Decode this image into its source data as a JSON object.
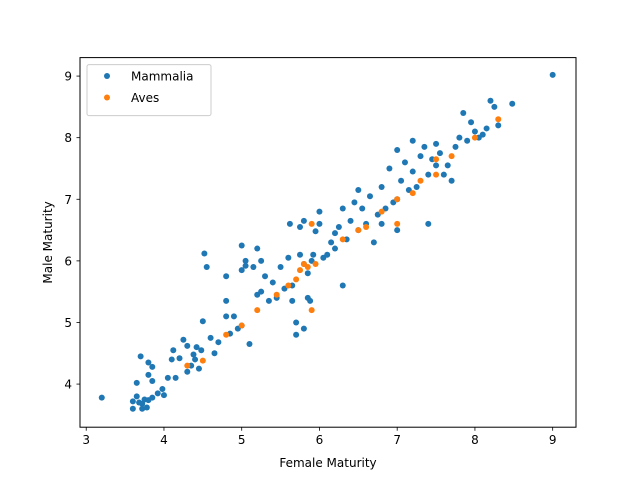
{
  "chart_data": {
    "type": "scatter",
    "xlabel": "Female Maturity",
    "ylabel": "Male Maturity",
    "xlim": [
      2.92,
      9.3
    ],
    "ylim": [
      3.3,
      9.3
    ],
    "xticks": [
      3,
      4,
      5,
      6,
      7,
      8,
      9
    ],
    "yticks": [
      4,
      5,
      6,
      7,
      8,
      9
    ],
    "grid": false,
    "legend_position": "upper-left",
    "series": [
      {
        "name": "Mammalia",
        "color": "#1f77b4",
        "points": [
          [
            3.2,
            3.78
          ],
          [
            3.6,
            3.6
          ],
          [
            3.6,
            3.72
          ],
          [
            3.65,
            3.8
          ],
          [
            3.65,
            4.02
          ],
          [
            3.68,
            3.7
          ],
          [
            3.7,
            4.45
          ],
          [
            3.72,
            3.6
          ],
          [
            3.72,
            3.68
          ],
          [
            3.75,
            3.75
          ],
          [
            3.78,
            3.62
          ],
          [
            3.8,
            3.74
          ],
          [
            3.8,
            4.35
          ],
          [
            3.85,
            3.78
          ],
          [
            3.8,
            4.15
          ],
          [
            3.85,
            4.28
          ],
          [
            3.92,
            3.85
          ],
          [
            3.98,
            3.92
          ],
          [
            4.0,
            3.82
          ],
          [
            3.85,
            4.05
          ],
          [
            4.05,
            4.1
          ],
          [
            4.1,
            4.4
          ],
          [
            4.12,
            4.55
          ],
          [
            4.15,
            4.1
          ],
          [
            4.2,
            4.42
          ],
          [
            4.25,
            4.72
          ],
          [
            4.3,
            4.2
          ],
          [
            4.3,
            4.62
          ],
          [
            4.35,
            4.3
          ],
          [
            4.38,
            4.48
          ],
          [
            4.4,
            4.4
          ],
          [
            4.42,
            4.6
          ],
          [
            4.45,
            4.25
          ],
          [
            4.48,
            4.55
          ],
          [
            4.5,
            5.02
          ],
          [
            4.52,
            6.12
          ],
          [
            4.55,
            5.9
          ],
          [
            4.6,
            4.75
          ],
          [
            4.65,
            4.5
          ],
          [
            4.7,
            4.68
          ],
          [
            4.8,
            5.1
          ],
          [
            4.8,
            5.35
          ],
          [
            4.8,
            5.75
          ],
          [
            4.85,
            4.82
          ],
          [
            4.9,
            5.1
          ],
          [
            4.95,
            4.9
          ],
          [
            5.0,
            4.95
          ],
          [
            5.0,
            5.85
          ],
          [
            5.0,
            6.25
          ],
          [
            5.05,
            6.0
          ],
          [
            5.05,
            5.92
          ],
          [
            5.1,
            4.65
          ],
          [
            5.15,
            5.9
          ],
          [
            5.2,
            6.2
          ],
          [
            5.2,
            5.45
          ],
          [
            5.25,
            5.5
          ],
          [
            5.25,
            6.0
          ],
          [
            5.3,
            5.75
          ],
          [
            5.35,
            5.35
          ],
          [
            5.4,
            5.65
          ],
          [
            5.45,
            5.4
          ],
          [
            5.5,
            5.9
          ],
          [
            5.55,
            5.55
          ],
          [
            5.6,
            6.05
          ],
          [
            5.62,
            6.6
          ],
          [
            5.65,
            5.35
          ],
          [
            5.65,
            5.6
          ],
          [
            5.7,
            5.0
          ],
          [
            5.7,
            4.8
          ],
          [
            5.75,
            6.55
          ],
          [
            5.75,
            6.1
          ],
          [
            5.8,
            5.95
          ],
          [
            5.8,
            4.9
          ],
          [
            5.8,
            6.65
          ],
          [
            5.85,
            5.8
          ],
          [
            5.85,
            5.4
          ],
          [
            5.88,
            5.35
          ],
          [
            5.9,
            6.0
          ],
          [
            5.92,
            6.1
          ],
          [
            5.95,
            6.48
          ],
          [
            6.0,
            6.8
          ],
          [
            6.0,
            6.6
          ],
          [
            6.05,
            6.05
          ],
          [
            6.1,
            6.1
          ],
          [
            6.15,
            6.3
          ],
          [
            6.2,
            6.2
          ],
          [
            6.2,
            6.45
          ],
          [
            6.25,
            6.55
          ],
          [
            6.3,
            5.6
          ],
          [
            6.3,
            6.85
          ],
          [
            6.35,
            6.35
          ],
          [
            6.4,
            6.65
          ],
          [
            6.45,
            6.95
          ],
          [
            6.5,
            6.5
          ],
          [
            6.5,
            7.15
          ],
          [
            6.55,
            6.85
          ],
          [
            6.6,
            6.6
          ],
          [
            6.65,
            7.05
          ],
          [
            6.7,
            6.3
          ],
          [
            6.75,
            6.75
          ],
          [
            6.8,
            7.2
          ],
          [
            6.8,
            6.6
          ],
          [
            6.85,
            6.85
          ],
          [
            6.9,
            7.5
          ],
          [
            6.95,
            6.95
          ],
          [
            7.0,
            7.0
          ],
          [
            7.0,
            7.8
          ],
          [
            7.0,
            6.5
          ],
          [
            7.05,
            7.3
          ],
          [
            7.1,
            7.6
          ],
          [
            7.15,
            7.15
          ],
          [
            7.2,
            7.45
          ],
          [
            7.2,
            7.95
          ],
          [
            7.25,
            7.2
          ],
          [
            7.3,
            7.7
          ],
          [
            7.35,
            7.85
          ],
          [
            7.4,
            6.6
          ],
          [
            7.4,
            7.4
          ],
          [
            7.45,
            7.65
          ],
          [
            7.5,
            7.55
          ],
          [
            7.5,
            7.9
          ],
          [
            7.55,
            7.75
          ],
          [
            7.6,
            7.4
          ],
          [
            7.65,
            7.55
          ],
          [
            7.7,
            7.3
          ],
          [
            7.75,
            7.85
          ],
          [
            7.8,
            8.0
          ],
          [
            7.85,
            8.4
          ],
          [
            7.9,
            7.95
          ],
          [
            7.95,
            8.25
          ],
          [
            8.0,
            8.1
          ],
          [
            8.05,
            8.0
          ],
          [
            8.1,
            8.05
          ],
          [
            8.15,
            8.15
          ],
          [
            8.2,
            8.6
          ],
          [
            8.25,
            8.5
          ],
          [
            8.3,
            8.2
          ],
          [
            8.48,
            8.55
          ],
          [
            9.0,
            9.02
          ]
        ]
      },
      {
        "name": "Aves",
        "color": "#ff7f0e",
        "points": [
          [
            4.3,
            4.3
          ],
          [
            4.5,
            4.38
          ],
          [
            4.8,
            4.8
          ],
          [
            5.0,
            4.95
          ],
          [
            5.2,
            5.2
          ],
          [
            5.45,
            5.45
          ],
          [
            5.6,
            5.6
          ],
          [
            5.7,
            5.7
          ],
          [
            5.75,
            5.85
          ],
          [
            5.8,
            5.95
          ],
          [
            5.85,
            5.9
          ],
          [
            5.9,
            5.2
          ],
          [
            5.9,
            6.6
          ],
          [
            5.95,
            5.95
          ],
          [
            6.3,
            6.35
          ],
          [
            6.5,
            6.5
          ],
          [
            6.6,
            6.55
          ],
          [
            6.8,
            6.8
          ],
          [
            7.0,
            6.6
          ],
          [
            7.0,
            7.0
          ],
          [
            7.2,
            7.1
          ],
          [
            7.3,
            7.3
          ],
          [
            7.5,
            7.4
          ],
          [
            7.5,
            7.65
          ],
          [
            7.7,
            7.7
          ],
          [
            8.0,
            8.0
          ],
          [
            8.3,
            8.3
          ]
        ]
      }
    ]
  }
}
